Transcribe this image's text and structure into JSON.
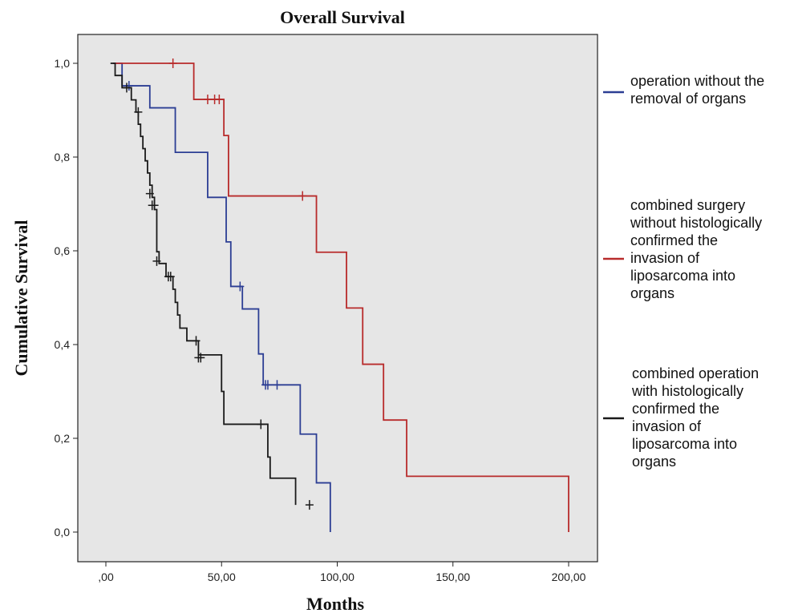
{
  "chart_data": {
    "type": "line",
    "title": "Overall Survival",
    "xlabel": "Months",
    "ylabel": "Cumulative Survival",
    "xlim": [
      0,
      200
    ],
    "ylim": [
      0,
      1
    ],
    "x_ticks": [
      0,
      50,
      100,
      150,
      200
    ],
    "x_tick_labels": [
      ",00",
      "50,00",
      "100,00",
      "150,00",
      "200,00"
    ],
    "y_ticks": [
      0,
      0.2,
      0.4,
      0.6,
      0.8,
      1.0
    ],
    "y_tick_labels": [
      "0,0",
      "0,2",
      "0,4",
      "0,6",
      "0,8",
      "1,0"
    ],
    "plot_background": "#e6e6e6",
    "legend_position": "right",
    "series": [
      {
        "name": "operation without the removal of organs",
        "color": "#2c3e94",
        "steps": [
          [
            3,
            1.0
          ],
          [
            7,
            0.952
          ],
          [
            19,
            0.905
          ],
          [
            30,
            0.81
          ],
          [
            44,
            0.714
          ],
          [
            52,
            0.619
          ],
          [
            54,
            0.524
          ],
          [
            59,
            0.476
          ],
          [
            66,
            0.38
          ],
          [
            68,
            0.314
          ],
          [
            84,
            0.209
          ],
          [
            91,
            0.105
          ],
          [
            97,
            0.0
          ]
        ],
        "censored": [
          [
            10,
            0.952
          ],
          [
            58,
            0.524
          ],
          [
            69,
            0.314
          ],
          [
            70,
            0.314
          ],
          [
            74,
            0.314
          ]
        ]
      },
      {
        "name": "combined surgery without histologically confirmed the invasion of liposarcoma into organs",
        "color": "#b82b2b",
        "steps": [
          [
            3,
            1.0
          ],
          [
            38,
            0.923
          ],
          [
            51,
            0.846
          ],
          [
            53,
            0.717
          ],
          [
            91,
            0.597
          ],
          [
            104,
            0.478
          ],
          [
            111,
            0.358
          ],
          [
            120,
            0.239
          ],
          [
            130,
            0.119
          ],
          [
            200,
            0.0
          ]
        ],
        "censored": [
          [
            29,
            1.0
          ],
          [
            44,
            0.923
          ],
          [
            47,
            0.923
          ],
          [
            49,
            0.923
          ],
          [
            85,
            0.717
          ]
        ]
      },
      {
        "name": "combined operation with histologically confirmed the invasion of liposarcoma into organs",
        "color": "#1a1a1a",
        "steps": [
          [
            2,
            1.0
          ],
          [
            4,
            0.974
          ],
          [
            7,
            0.948
          ],
          [
            11,
            0.922
          ],
          [
            13,
            0.896
          ],
          [
            14,
            0.87
          ],
          [
            15,
            0.844
          ],
          [
            16,
            0.818
          ],
          [
            17,
            0.792
          ],
          [
            18,
            0.766
          ],
          [
            19,
            0.74
          ],
          [
            20,
            0.714
          ],
          [
            21,
            0.688
          ],
          [
            22,
            0.598
          ],
          [
            23,
            0.573
          ],
          [
            26,
            0.545
          ],
          [
            29,
            0.518
          ],
          [
            30,
            0.49
          ],
          [
            31,
            0.463
          ],
          [
            32,
            0.435
          ],
          [
            35,
            0.408
          ],
          [
            40,
            0.378
          ],
          [
            50,
            0.3
          ],
          [
            51,
            0.23
          ],
          [
            70,
            0.16
          ],
          [
            71,
            0.115
          ],
          [
            82,
            0.058
          ]
        ],
        "censored": [
          [
            9,
            0.948
          ],
          [
            14,
            0.896
          ],
          [
            19,
            0.722
          ],
          [
            20,
            0.697
          ],
          [
            21,
            0.697
          ],
          [
            22,
            0.578
          ],
          [
            27,
            0.545
          ],
          [
            28,
            0.545
          ],
          [
            39,
            0.408
          ],
          [
            40,
            0.372
          ],
          [
            41,
            0.372
          ],
          [
            67,
            0.23
          ],
          [
            88,
            0.058
          ]
        ]
      }
    ]
  }
}
